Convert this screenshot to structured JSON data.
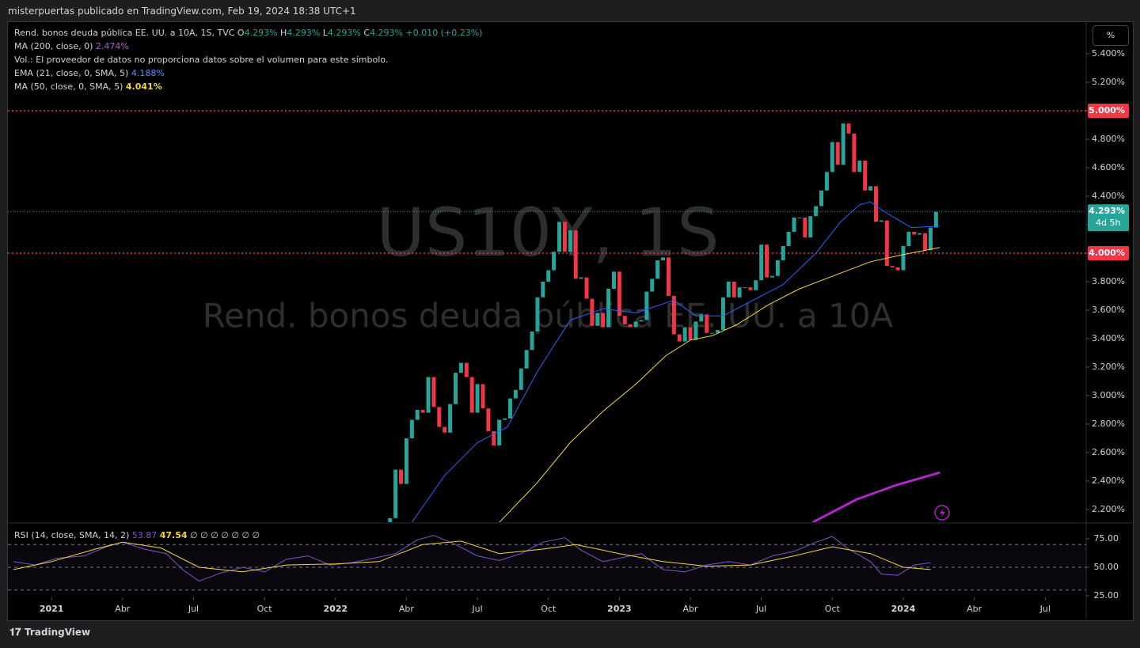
{
  "header": {
    "text": "misterpuertas publicado en TradingView.com, Feb 19, 2024 18:38 UTC+1"
  },
  "footer": {
    "brand": "TradingView"
  },
  "unit_button": "%",
  "watermark": {
    "symbol": "US10Y, 1S",
    "name": "Rend. bonos deuda pública EE. UU. a 10A"
  },
  "legend": {
    "symbol": "Rend. bonos deuda pública EE. UU. a 10A, 1S, TVC",
    "ohlc": [
      {
        "k": "O",
        "v": "4.293%"
      },
      {
        "k": "H",
        "v": "4.293%"
      },
      {
        "k": "L",
        "v": "4.293%"
      },
      {
        "k": "C",
        "v": "4.293%"
      }
    ],
    "change": "+0.010 (+0.23%)",
    "volume": "Vol.: El proveedor de datos no proporciona datos sobre el volumen para este símbolo.",
    "indicators": [
      {
        "label": "MA (200, close, 0)",
        "value": "2.474%",
        "color": "#b05cd6"
      },
      {
        "label": "EMA (21, close, 0, SMA, 5)",
        "value": "4.188%",
        "color": "#5b8cff"
      },
      {
        "label": "MA (50, close, 0, SMA, 5)",
        "value": "4.041%",
        "color": "#f5d63a"
      }
    ]
  },
  "chart_data": [
    {
      "type": "candlestick",
      "up_color": "#26a69a",
      "down_color": "#f23645",
      "xlim": [
        -8,
        189.5
      ],
      "xticks": [
        {
          "value": 0,
          "label": "2021"
        },
        {
          "value": 13,
          "label": "Abr"
        },
        {
          "value": 26,
          "label": "Jul"
        },
        {
          "value": 39,
          "label": "Oct"
        },
        {
          "value": 52,
          "label": "2022"
        },
        {
          "value": 65,
          "label": "Abr"
        },
        {
          "value": 78,
          "label": "Jul"
        },
        {
          "value": 91,
          "label": "Oct"
        },
        {
          "value": 104,
          "label": "2023"
        },
        {
          "value": 117,
          "label": "Abr"
        },
        {
          "value": 130,
          "label": "Jul"
        },
        {
          "value": 143,
          "label": "Oct"
        },
        {
          "value": 156,
          "label": "2024"
        },
        {
          "value": 169,
          "label": "Abr"
        },
        {
          "value": 182,
          "label": "Jul"
        }
      ],
      "ylim": [
        2.111,
        5.622
      ],
      "yticks": [
        {
          "value": 2.2,
          "label": "2.200%"
        },
        {
          "value": 2.4,
          "label": "2.400%"
        },
        {
          "value": 2.6,
          "label": "2.600%"
        },
        {
          "value": 2.8,
          "label": "2.800%"
        },
        {
          "value": 3.0,
          "label": "3.000%"
        },
        {
          "value": 3.2,
          "label": "3.200%"
        },
        {
          "value": 3.4,
          "label": "3.400%"
        },
        {
          "value": 3.6,
          "label": "3.600%"
        },
        {
          "value": 3.8,
          "label": "3.800%"
        },
        {
          "value": 4.0,
          "label": "4.000%"
        },
        {
          "value": 4.2,
          "label": "4.200%"
        },
        {
          "value": 4.4,
          "label": "4.400%"
        },
        {
          "value": 4.6,
          "label": "4.600%"
        },
        {
          "value": 4.8,
          "label": "4.800%"
        },
        {
          "value": 5.0,
          "label": "5.000%"
        },
        {
          "value": 5.2,
          "label": "5.200%"
        },
        {
          "value": 5.4,
          "label": "5.400%"
        }
      ],
      "x": [
        61,
        62,
        63,
        64,
        65,
        66,
        67,
        68,
        69,
        70,
        71,
        72,
        73,
        74,
        75,
        76,
        77,
        78,
        79,
        80,
        81,
        82,
        83,
        84,
        85,
        86,
        87,
        88,
        89,
        90,
        91,
        92,
        93,
        94,
        95,
        96,
        97,
        98,
        99,
        100,
        101,
        102,
        103,
        104,
        105,
        106,
        107,
        108,
        109,
        110,
        111,
        112,
        113,
        114,
        115,
        116,
        117,
        118,
        119,
        120,
        121,
        122,
        123,
        124,
        125,
        126,
        127,
        128,
        129,
        130,
        131,
        132,
        133,
        134,
        135,
        136,
        137,
        138,
        139,
        140,
        141,
        142,
        143,
        144,
        145,
        146,
        147,
        148,
        149,
        150,
        151,
        152,
        153,
        154,
        155,
        156,
        157,
        158,
        159,
        160,
        161,
        162
      ],
      "values": [
        2.0,
        2.14,
        2.48,
        2.38,
        2.7,
        2.83,
        2.9,
        2.88,
        3.13,
        2.92,
        2.78,
        2.74,
        2.94,
        3.16,
        3.23,
        3.13,
        2.88,
        3.08,
        2.91,
        2.75,
        2.65,
        2.83,
        2.84,
        2.98,
        3.04,
        3.19,
        3.32,
        3.45,
        3.69,
        3.8,
        3.88,
        4.01,
        4.22,
        4.01,
        4.16,
        3.82,
        3.83,
        3.68,
        3.49,
        3.58,
        3.48,
        3.75,
        3.87,
        3.56,
        3.5,
        3.48,
        3.52,
        3.53,
        3.73,
        3.82,
        3.95,
        3.97,
        3.7,
        3.43,
        3.38,
        3.48,
        3.39,
        3.52,
        3.57,
        3.44,
        3.44,
        3.46,
        3.69,
        3.8,
        3.69,
        3.76,
        3.76,
        3.74,
        3.81,
        4.06,
        3.83,
        3.84,
        3.95,
        4.05,
        4.15,
        4.25,
        4.25,
        4.11,
        4.26,
        4.33,
        4.44,
        4.57,
        4.78,
        4.62,
        4.91,
        4.84,
        4.57,
        4.65,
        4.44,
        4.47,
        4.22,
        4.23,
        3.91,
        3.9,
        3.88,
        4.05,
        4.15,
        4.13,
        4.14,
        4.02,
        4.18,
        4.29
      ],
      "lines": [
        {
          "color": "#2962ff",
          "x": [
            66,
            72,
            78,
            83.5,
            89,
            95,
            101,
            107,
            114,
            118,
            123,
            128.5,
            134,
            140,
            144.5,
            148,
            150,
            153,
            157.5,
            162.7
          ],
          "values": [
            2.11,
            2.44,
            2.67,
            2.78,
            3.17,
            3.53,
            3.61,
            3.58,
            3.67,
            3.56,
            3.56,
            3.67,
            3.78,
            4.0,
            4.22,
            4.34,
            4.36,
            4.28,
            4.18,
            4.19
          ],
          "width": 1
        },
        {
          "color": "#f5d63a",
          "x": [
            82,
            89,
            95,
            101,
            107,
            112.5,
            117,
            121,
            125.6,
            131.4,
            137,
            144.5,
            150,
            156,
            162.7
          ],
          "values": [
            2.11,
            2.39,
            2.67,
            2.89,
            3.08,
            3.28,
            3.39,
            3.42,
            3.5,
            3.64,
            3.75,
            3.86,
            3.94,
            3.99,
            4.04
          ],
          "width": 1
        },
        {
          "color": "#b026c8",
          "x": [
            139.4,
            147.4,
            154.6,
            162.7
          ],
          "values": [
            2.11,
            2.27,
            2.37,
            2.46
          ],
          "width": 3
        }
      ],
      "hlines": [
        {
          "value": 5.0,
          "label": "5.000%",
          "color": "#f23645"
        },
        {
          "value": 4.0,
          "label": "4.000%",
          "color": "#f23645"
        }
      ],
      "last_price": {
        "value": 4.293,
        "label": "4.293%",
        "countdown": "4d 5h",
        "color": "#26a69a"
      }
    },
    {
      "type": "line",
      "title": "RSI (14, close, SMA, 14, 2)",
      "extras": "∅ ∅ ∅ ∅ ∅ ∅ ∅",
      "ylim": [
        23.6,
        88.2
      ],
      "yticks": [
        {
          "value": 75,
          "label": "75.00"
        },
        {
          "value": 50,
          "label": "50.00"
        },
        {
          "value": 25,
          "label": "25.00"
        }
      ],
      "bands": [
        70,
        50,
        30
      ],
      "series": [
        {
          "color": "#7e57c2",
          "value_label": "53.87",
          "x": [
            -7,
            -3,
            1,
            6,
            10,
            13,
            17,
            21,
            24,
            27,
            31,
            35,
            39,
            43,
            47,
            51,
            55,
            59,
            63,
            67,
            70,
            74,
            78,
            82,
            86,
            90,
            94,
            97,
            101,
            104,
            108,
            112,
            116,
            120,
            124,
            128,
            132,
            136,
            140,
            143,
            146,
            150,
            152,
            155,
            158,
            161
          ],
          "values": [
            55,
            52,
            58,
            60,
            68,
            72,
            66,
            62,
            48,
            38,
            45,
            50,
            46,
            57,
            60,
            52,
            54,
            58,
            62,
            74,
            78,
            70,
            60,
            56,
            62,
            72,
            76,
            65,
            55,
            58,
            62,
            48,
            46,
            52,
            55,
            52,
            60,
            64,
            72,
            77,
            66,
            55,
            44,
            43,
            52,
            54
          ]
        },
        {
          "color": "#f5d63a",
          "value_label": "47.54",
          "x": [
            -7,
            0,
            8,
            13,
            20,
            27,
            35,
            43,
            52,
            60,
            68,
            75,
            82,
            90,
            96,
            104,
            112,
            120,
            128,
            136,
            143,
            150,
            156,
            161
          ],
          "values": [
            48,
            55,
            66,
            72,
            67,
            50,
            46,
            52,
            53,
            55,
            70,
            73,
            62,
            66,
            70,
            62,
            55,
            51,
            52,
            60,
            68,
            62,
            50,
            48
          ]
        }
      ]
    }
  ]
}
